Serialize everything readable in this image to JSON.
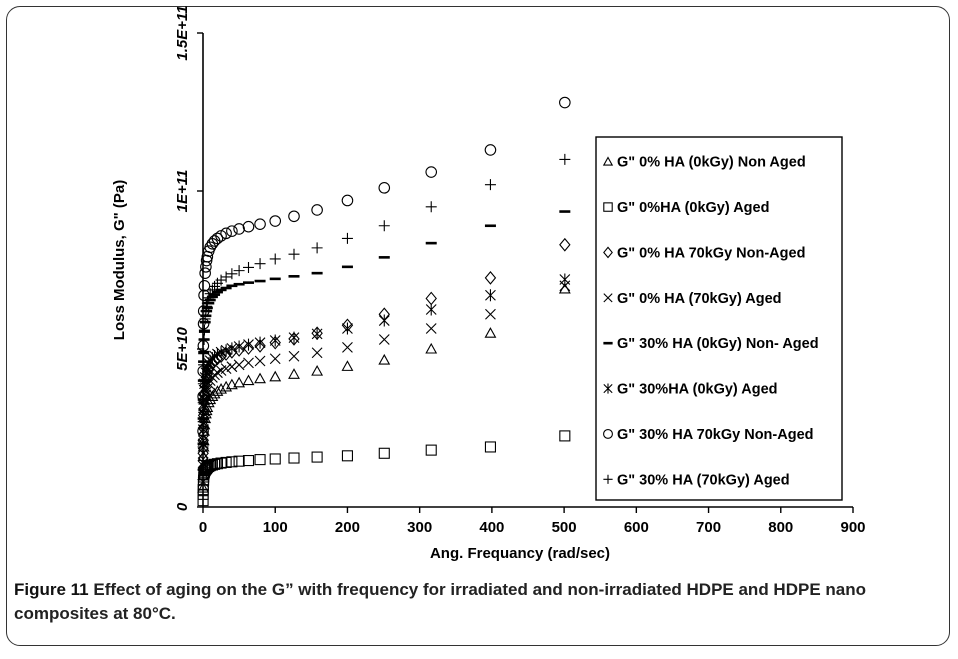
{
  "caption": {
    "label": "Figure 11",
    "text": " Effect of aging on the G” with frequency for irradiated and non-irradiated HDPE and HDPE nano composites at 80°C."
  },
  "chart_data": {
    "type": "scatter",
    "xlabel": "Ang. Frequancy (rad/sec)",
    "ylabel": "Loss Modulus, G\" (Pa)",
    "xlim": [
      0,
      900
    ],
    "ylim": [
      0,
      150000000000
    ],
    "x_ticks": [
      0,
      100,
      200,
      300,
      400,
      500,
      600,
      700,
      800,
      900
    ],
    "x_tick_labels": [
      "0",
      "100",
      "200",
      "300",
      "400",
      "500",
      "600",
      "700",
      "800",
      "900"
    ],
    "y_ticks": [
      0,
      50000000000,
      100000000000,
      150000000000
    ],
    "y_tick_labels": [
      "0",
      "5E+10",
      "1E+11",
      "1.5E+11"
    ],
    "grid": false,
    "legend_position": "right",
    "x": [
      0.1,
      0.2,
      0.3,
      0.5,
      0.8,
      1.0,
      1.5,
      2,
      3,
      4,
      5,
      6,
      8,
      10,
      13,
      16,
      20,
      25,
      32,
      40,
      50,
      63,
      79,
      100,
      126,
      158,
      200,
      251,
      316,
      398,
      501
    ],
    "series": [
      {
        "name": "G\" 0% HA (0kGy) Non Aged",
        "marker": "triangle",
        "values": [
          6000000000.0,
          10000000000.0,
          13000000000.0,
          16000000000.0,
          19000000000.0,
          21000000000.0,
          24000000000.0,
          26000000000.0,
          28000000000.0,
          29500000000.0,
          30500000000.0,
          31500000000.0,
          33000000000.0,
          34000000000.0,
          35000000000.0,
          35800000000.0,
          36600000000.0,
          37300000000.0,
          38000000000.0,
          38700000000.0,
          39300000000.0,
          40000000000.0,
          40600000000.0,
          41200000000.0,
          42000000000.0,
          43000000000.0,
          44500000000.0,
          46500000000.0,
          50000000000.0,
          55000000000.0,
          69000000000.0
        ]
      },
      {
        "name": "G\" 0%HA (0kGy)  Aged",
        "marker": "square",
        "values": [
          2000000000.0,
          4000000000.0,
          5500000000.0,
          7000000000.0,
          8500000000.0,
          9500000000.0,
          10500000000.0,
          11000000000.0,
          11500000000.0,
          11900000000.0,
          12200000000.0,
          12500000000.0,
          12800000000.0,
          13100000000.0,
          13300000000.0,
          13500000000.0,
          13700000000.0,
          13900000000.0,
          14100000000.0,
          14300000000.0,
          14500000000.0,
          14700000000.0,
          15000000000.0,
          15200000000.0,
          15500000000.0,
          15800000000.0,
          16200000000.0,
          17000000000.0,
          18000000000.0,
          19000000000.0,
          22500000000.0
        ]
      },
      {
        "name": "G\" 0% HA 70kGy Non-Aged",
        "marker": "diamond",
        "values": [
          12000000000.0,
          17000000000.0,
          21000000000.0,
          25000000000.0,
          29000000000.0,
          31000000000.0,
          34000000000.0,
          36000000000.0,
          38500000000.0,
          40000000000.0,
          41000000000.0,
          42000000000.0,
          43500000000.0,
          44500000000.0,
          45500000000.0,
          46300000000.0,
          47000000000.0,
          47700000000.0,
          48400000000.0,
          49100000000.0,
          49700000000.0,
          50300000000.0,
          51000000000.0,
          52000000000.0,
          53200000000.0,
          55000000000.0,
          57500000000.0,
          61000000000.0,
          66000000000.0,
          72500000000.0,
          83000000000.0
        ]
      },
      {
        "name": "G\" 0% HA (70kGy) Aged",
        "marker": "x",
        "values": [
          8000000000.0,
          13000000000.0,
          17000000000.0,
          21000000000.0,
          24500000000.0,
          26500000000.0,
          29500000000.0,
          31500000000.0,
          34000000000.0,
          35500000000.0,
          36500000000.0,
          37500000000.0,
          39000000000.0,
          40000000000.0,
          41000000000.0,
          41800000000.0,
          42500000000.0,
          43200000000.0,
          43800000000.0,
          44400000000.0,
          45000000000.0,
          45600000000.0,
          46200000000.0,
          46900000000.0,
          47700000000.0,
          48800000000.0,
          50500000000.0,
          53000000000.0,
          56500000000.0,
          61000000000.0,
          70000000000.0
        ]
      },
      {
        "name": "G\" 30% HA (0kGy) Non- Aged",
        "marker": "dash",
        "values": [
          20000000000.0,
          28000000000.0,
          34000000000.0,
          40000000000.0,
          46000000000.0,
          49000000000.0,
          53000000000.0,
          55500000000.0,
          58500000000.0,
          60500000000.0,
          62000000000.0,
          63000000000.0,
          64500000000.0,
          65500000000.0,
          66500000000.0,
          67200000000.0,
          68000000000.0,
          68700000000.0,
          69300000000.0,
          70000000000.0,
          70500000000.0,
          71000000000.0,
          71500000000.0,
          72200000000.0,
          73000000000.0,
          74000000000.0,
          76000000000.0,
          79000000000.0,
          83500000000.0,
          89000000000.0,
          93500000000.0
        ]
      },
      {
        "name": "G\" 30%HA (0kGy) Aged",
        "marker": "asterisk",
        "values": [
          14000000000.0,
          20000000000.0,
          24500000000.0,
          28500000000.0,
          32000000000.0,
          34000000000.0,
          37000000000.0,
          39000000000.0,
          41000000000.0,
          42500000000.0,
          43500000000.0,
          44300000000.0,
          45500000000.0,
          46300000000.0,
          47100000000.0,
          47800000000.0,
          48400000000.0,
          49000000000.0,
          49600000000.0,
          50200000000.0,
          50800000000.0,
          51400000000.0,
          52000000000.0,
          52700000000.0,
          53600000000.0,
          54800000000.0,
          56500000000.0,
          59000000000.0,
          62500000000.0,
          67000000000.0,
          72000000000.0
        ]
      },
      {
        "name": "G\" 30% HA 70kGy Non-Aged",
        "marker": "circle",
        "values": [
          24000000000.0,
          35000000000.0,
          43000000000.0,
          51000000000.0,
          58000000000.0,
          62000000000.0,
          67000000000.0,
          70000000000.0,
          74000000000.0,
          76000000000.0,
          78000000000.0,
          79200000000.0,
          81000000000.0,
          82200000000.0,
          83300000000.0,
          84200000000.0,
          85000000000.0,
          85800000000.0,
          86600000000.0,
          87300000000.0,
          88000000000.0,
          88700000000.0,
          89500000000.0,
          90500000000.0,
          92000000000.0,
          94000000000.0,
          97000000000.0,
          101000000000.0,
          106000000000.0,
          113000000000.0,
          128000000000.0
        ]
      },
      {
        "name": "G\" 30% HA (70kGy) Aged",
        "marker": "plus",
        "values": [
          19000000000.0,
          27000000000.0,
          33000000000.0,
          39000000000.0,
          45000000000.0,
          48500000000.0,
          53000000000.0,
          56000000000.0,
          59500000000.0,
          62000000000.0,
          63500000000.0,
          64500000000.0,
          66200000000.0,
          67500000000.0,
          68700000000.0,
          69800000000.0,
          70800000000.0,
          71800000000.0,
          72800000000.0,
          73800000000.0,
          74800000000.0,
          75800000000.0,
          77000000000.0,
          78500000000.0,
          80000000000.0,
          82000000000.0,
          85000000000.0,
          89000000000.0,
          95000000000.0,
          102000000000.0,
          110000000000.0
        ]
      }
    ]
  }
}
